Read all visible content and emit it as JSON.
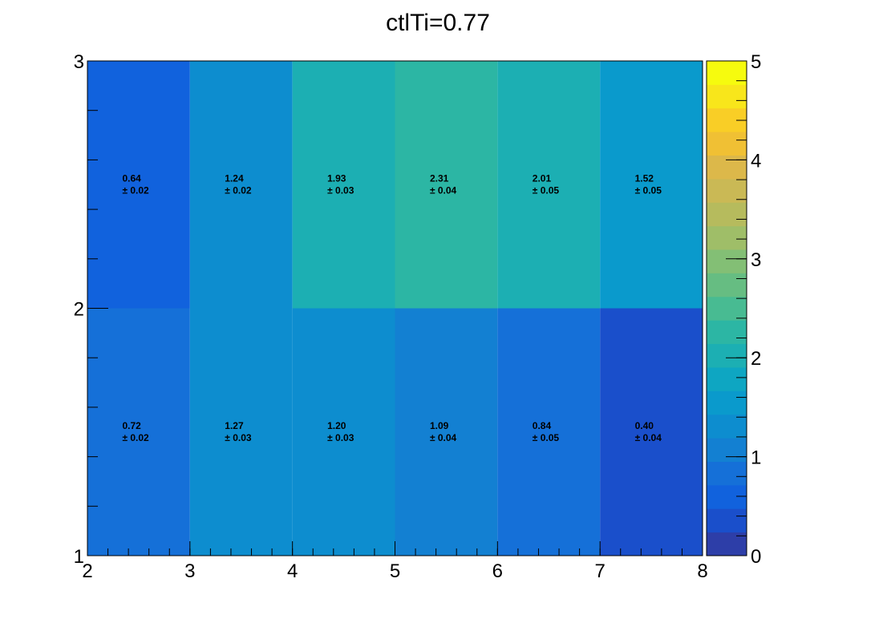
{
  "chart_data": {
    "type": "heatmap",
    "title": "ctlTi=0.77",
    "xlabel": "",
    "ylabel": "",
    "x_edges": [
      2,
      3,
      4,
      5,
      6,
      7,
      8
    ],
    "y_edges": [
      1,
      2,
      3
    ],
    "xlim": [
      2,
      8
    ],
    "ylim": [
      1,
      3
    ],
    "x_ticks": [
      "2",
      "3",
      "4",
      "5",
      "6",
      "7",
      "8"
    ],
    "y_ticks": [
      "1",
      "2",
      "3"
    ],
    "cells": [
      [
        {
          "value": 0.72,
          "error": 0.02,
          "value_label": "0.72",
          "error_label": "± 0.02"
        },
        {
          "value": 1.27,
          "error": 0.03,
          "value_label": "1.27",
          "error_label": "± 0.03"
        },
        {
          "value": 1.2,
          "error": 0.03,
          "value_label": "1.20",
          "error_label": "± 0.03"
        },
        {
          "value": 1.09,
          "error": 0.04,
          "value_label": "1.09",
          "error_label": "± 0.04"
        },
        {
          "value": 0.84,
          "error": 0.05,
          "value_label": "0.84",
          "error_label": "± 0.05"
        },
        {
          "value": 0.4,
          "error": 0.04,
          "value_label": "0.40",
          "error_label": "± 0.04"
        }
      ],
      [
        {
          "value": 0.64,
          "error": 0.02,
          "value_label": "0.64",
          "error_label": "± 0.02"
        },
        {
          "value": 1.24,
          "error": 0.02,
          "value_label": "1.24",
          "error_label": "± 0.02"
        },
        {
          "value": 1.93,
          "error": 0.03,
          "value_label": "1.93",
          "error_label": "± 0.03"
        },
        {
          "value": 2.31,
          "error": 0.04,
          "value_label": "2.31",
          "error_label": "± 0.04"
        },
        {
          "value": 2.01,
          "error": 0.05,
          "value_label": "2.01",
          "error_label": "± 0.05"
        },
        {
          "value": 1.52,
          "error": 0.05,
          "value_label": "1.52",
          "error_label": "± 0.05"
        }
      ]
    ],
    "colorbar": {
      "range": [
        0,
        5
      ],
      "ticks": [
        "0",
        "1",
        "2",
        "3",
        "4",
        "5"
      ],
      "palette": [
        "#2d3ea8",
        "#1a4fcb",
        "#1162dd",
        "#1570d8",
        "#1380d2",
        "#0d8dcf",
        "#0a9acc",
        "#0ea6c2",
        "#1cafb3",
        "#2cb6a4",
        "#48bb92",
        "#66bd82",
        "#83bf75",
        "#9fbe68",
        "#b6bb5d",
        "#cab955",
        "#dcb84a",
        "#f0c034",
        "#f9ce26",
        "#f8e61b",
        "#f6fb0e"
      ]
    },
    "grid": false,
    "legend": "colorbar-right"
  }
}
